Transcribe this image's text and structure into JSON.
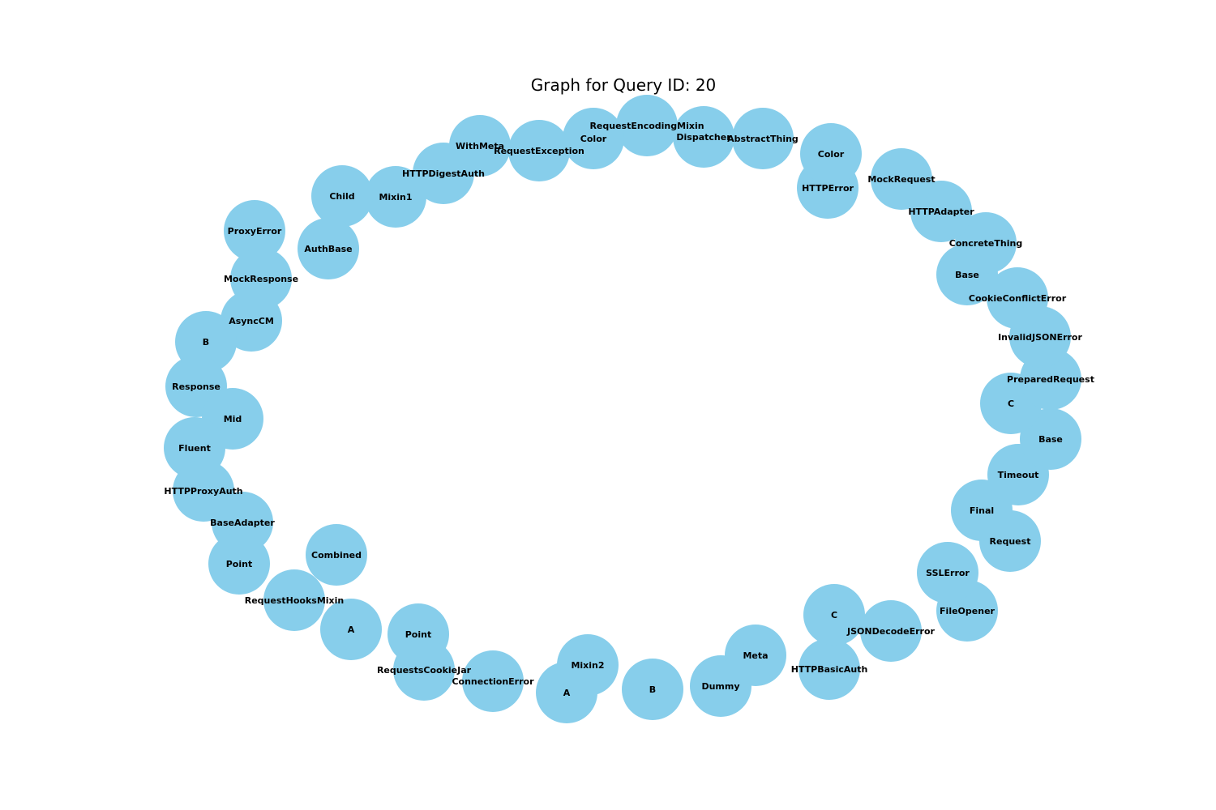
{
  "title": "Graph for Query ID: 20",
  "colors": {
    "node_fill": "#87ceeb",
    "label": "#000000",
    "background": "#ffffff"
  },
  "nodes": [
    "RequestEncodingMixin",
    "Dispatcher",
    "AbstractThing",
    "Color",
    "RequestException",
    "WithMeta",
    "HTTPDigestAuth",
    "Mixin1",
    "Child",
    "AuthBase",
    "ProxyError",
    "MockResponse",
    "AsyncCM",
    "B",
    "Response",
    "Mid",
    "Fluent",
    "HTTPProxyAuth",
    "BaseAdapter",
    "Point",
    "Combined",
    "RequestHooksMixin",
    "A",
    "Point",
    "RequestsCookieJar",
    "ConnectionError",
    "Mixin2",
    "A",
    "B",
    "Dummy",
    "Meta",
    "HTTPBasicAuth",
    "C",
    "JSONDecodeError",
    "FileOpener",
    "SSLError",
    "Request",
    "Final",
    "Timeout",
    "Base",
    "C",
    "PreparedRequest",
    "InvalidJSONError",
    "CookieConflictError",
    "Base",
    "ConcreteThing",
    "HTTPAdapter",
    "MockRequest",
    "HTTPError",
    "Color"
  ]
}
